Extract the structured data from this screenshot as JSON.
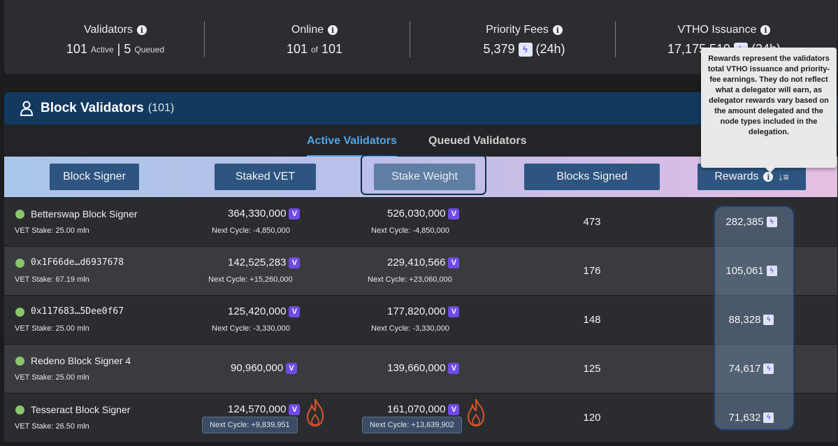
{
  "stats": {
    "validators": {
      "label": "Validators",
      "active": "101",
      "active_label": "Active",
      "separator": "|",
      "queued": "5",
      "queued_label": "Queued"
    },
    "online": {
      "label": "Online",
      "value": "101",
      "of": "of",
      "total": "101"
    },
    "priority_fees": {
      "label": "Priority Fees",
      "value": "5,379",
      "period": "(24h)"
    },
    "vtho_issuance": {
      "label": "VTHO Issuance",
      "value": "17,175,519",
      "period": "(24h)"
    }
  },
  "panel": {
    "title": "Block Validators",
    "count": "(101)"
  },
  "tabs": [
    {
      "label": "Active Validators",
      "active": true
    },
    {
      "label": "Queued Validators",
      "active": false
    }
  ],
  "columns": {
    "block_signer": "Block Signer",
    "staked_vet": "Staked VET",
    "stake_weight": "Stake Weight",
    "blocks_signed": "Blocks Signed",
    "rewards": "Rewards"
  },
  "tooltip": {
    "text": "Rewards represent the validators total VTHO issuance and priority-fee earnings. They do not reflect what a delegator will earn, as delegator rewards vary based on the amount delegated and the node types included in the delegation."
  },
  "rows": [
    {
      "name": "Betterswap Block Signer",
      "vet_stake": "VET Stake: 25.00 mln",
      "staked": "364,330,000",
      "staked_next": "Next Cycle: -4,850,000",
      "weight": "526,030,000",
      "weight_next": "Next Cycle: -4,850,000",
      "blocks": "473",
      "rewards": "282,385"
    },
    {
      "name": "0x1F66de…d6937678",
      "vet_stake": "VET Stake: 67.19 mln",
      "staked": "142,525,283",
      "staked_next": "Next Cycle: +15,260,000",
      "weight": "229,410,566",
      "weight_next": "Next Cycle: +23,060,000",
      "blocks": "176",
      "rewards": "105,061"
    },
    {
      "name": "0x117683…5Dee0f67",
      "vet_stake": "VET Stake: 25.00 mln",
      "staked": "125,420,000",
      "staked_next": "Next Cycle: -3,330,000",
      "weight": "177,820,000",
      "weight_next": "Next Cycle: -3,330,000",
      "blocks": "148",
      "rewards": "88,328"
    },
    {
      "name": "Redeno Block Signer 4",
      "vet_stake": "VET Stake: 25.00 mln",
      "staked": "90,960,000",
      "staked_next": "",
      "weight": "139,660,000",
      "weight_next": "",
      "blocks": "125",
      "rewards": "74,617"
    },
    {
      "name": "Tesseract Block Signer",
      "vet_stake": "VET Stake: 26.50 mln",
      "staked": "124,570,000",
      "staked_next": "Next Cycle: +9,839,951",
      "weight": "161,070,000",
      "weight_next": "Next Cycle: +13,639,902",
      "blocks": "120",
      "rewards": "71,632"
    }
  ],
  "colors": {
    "accent": "#4fa6e8",
    "header_bg": "#13395f",
    "button_bg": "#2e5581",
    "online_dot": "#8bc56a",
    "vet_badge": "#6e4be6"
  }
}
